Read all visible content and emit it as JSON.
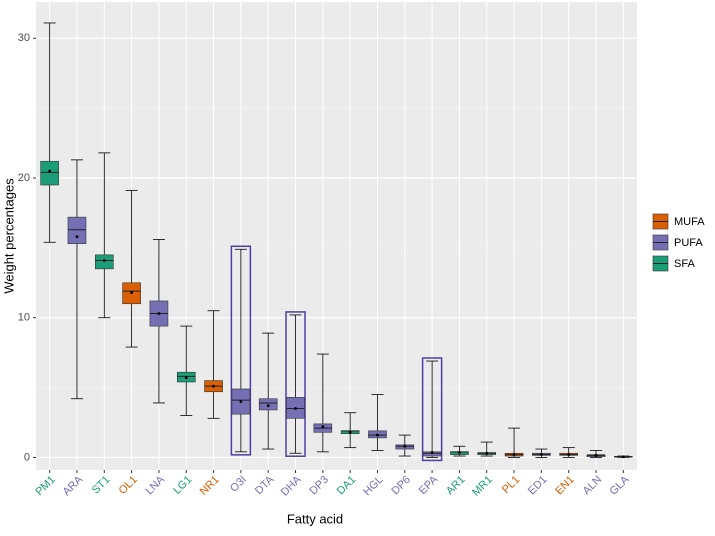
{
  "chart_data": {
    "type": "box",
    "x_label": "Fatty acid",
    "y_label": "Weight percentages",
    "categories": [
      "PM1",
      "ARA",
      "ST1",
      "OL1",
      "LNA",
      "LG1",
      "NR1",
      "O3I",
      "DTA",
      "DHA",
      "DP3",
      "DA1",
      "HGL",
      "DP6",
      "EPA",
      "AR1",
      "MR1",
      "PL1",
      "ED1",
      "EN1",
      "ALN",
      "GLA"
    ],
    "ylim": [
      -0.9,
      32.6
    ],
    "yticks": [
      0,
      10,
      20,
      30
    ],
    "grid": true,
    "legend_position": "right",
    "series": [
      {
        "name": "MUFA",
        "color": "#D95F02",
        "values": [
          null,
          null,
          null,
          {
            "min": 7.9,
            "q1": 11.0,
            "median": 11.9,
            "q3": 12.5,
            "max": 19.1,
            "mean": 11.8
          },
          null,
          null,
          {
            "min": 2.8,
            "q1": 4.7,
            "median": 5.1,
            "q3": 5.5,
            "max": 10.5,
            "mean": 5.1
          },
          null,
          null,
          null,
          null,
          null,
          null,
          null,
          null,
          null,
          null,
          {
            "min": 0.0,
            "q1": 0.1,
            "median": 0.2,
            "q3": 0.3,
            "max": 2.1,
            "mean": 0.2
          },
          null,
          {
            "min": 0.0,
            "q1": 0.15,
            "median": 0.2,
            "q3": 0.3,
            "max": 0.7,
            "mean": 0.2
          },
          null,
          null
        ]
      },
      {
        "name": "PUFA",
        "color": "#7570B3",
        "values": [
          null,
          {
            "min": 4.2,
            "q1": 15.3,
            "median": 16.3,
            "q3": 17.2,
            "max": 21.3,
            "mean": 15.8
          },
          null,
          null,
          {
            "min": 3.9,
            "q1": 9.4,
            "median": 10.3,
            "q3": 11.2,
            "max": 15.6,
            "mean": 10.3
          },
          null,
          null,
          {
            "min": 0.4,
            "q1": 3.1,
            "median": 4.1,
            "q3": 4.9,
            "max": 14.9,
            "mean": 4.0
          },
          {
            "min": 0.6,
            "q1": 3.4,
            "median": 3.9,
            "q3": 4.2,
            "max": 8.9,
            "mean": 3.7
          },
          {
            "min": 0.3,
            "q1": 2.8,
            "median": 3.5,
            "q3": 4.3,
            "max": 10.2,
            "mean": 3.5
          },
          {
            "min": 0.4,
            "q1": 1.8,
            "median": 2.1,
            "q3": 2.4,
            "max": 7.4,
            "mean": 2.2
          },
          null,
          {
            "min": 0.5,
            "q1": 1.4,
            "median": 1.6,
            "q3": 1.9,
            "max": 4.5,
            "mean": 1.6
          },
          {
            "min": 0.1,
            "q1": 0.6,
            "median": 0.8,
            "q3": 0.9,
            "max": 1.6,
            "mean": 0.8
          },
          {
            "min": 0.0,
            "q1": 0.1,
            "median": 0.3,
            "q3": 0.4,
            "max": 6.9,
            "mean": 0.35
          },
          null,
          null,
          null,
          {
            "min": 0.0,
            "q1": 0.15,
            "median": 0.2,
            "q3": 0.3,
            "max": 0.6,
            "mean": 0.2
          },
          null,
          {
            "min": 0.0,
            "q1": 0.05,
            "median": 0.15,
            "q3": 0.2,
            "max": 0.5,
            "mean": 0.15
          },
          {
            "min": 0.0,
            "q1": 0.02,
            "median": 0.05,
            "q3": 0.08,
            "max": 0.1,
            "mean": 0.05
          }
        ]
      },
      {
        "name": "SFA",
        "color": "#1B9E77",
        "values": [
          {
            "min": 15.4,
            "q1": 19.5,
            "median": 20.4,
            "q3": 21.2,
            "max": 31.1,
            "mean": 20.5
          },
          null,
          {
            "min": 10.0,
            "q1": 13.5,
            "median": 14.1,
            "q3": 14.5,
            "max": 21.8,
            "mean": 14.1
          },
          null,
          null,
          {
            "min": 3.0,
            "q1": 5.4,
            "median": 5.8,
            "q3": 6.1,
            "max": 9.4,
            "mean": 5.7
          },
          null,
          null,
          null,
          null,
          null,
          {
            "min": 0.7,
            "q1": 1.7,
            "median": 1.9,
            "q3": 1.9,
            "max": 3.2,
            "mean": 1.8
          },
          null,
          null,
          null,
          {
            "min": 0.1,
            "q1": 0.2,
            "median": 0.4,
            "q3": 0.4,
            "max": 0.8,
            "mean": 0.35
          },
          {
            "min": 0.1,
            "q1": 0.2,
            "median": 0.3,
            "q3": 0.35,
            "max": 1.1,
            "mean": 0.3
          },
          null,
          null,
          null,
          null,
          null
        ]
      }
    ]
  }
}
